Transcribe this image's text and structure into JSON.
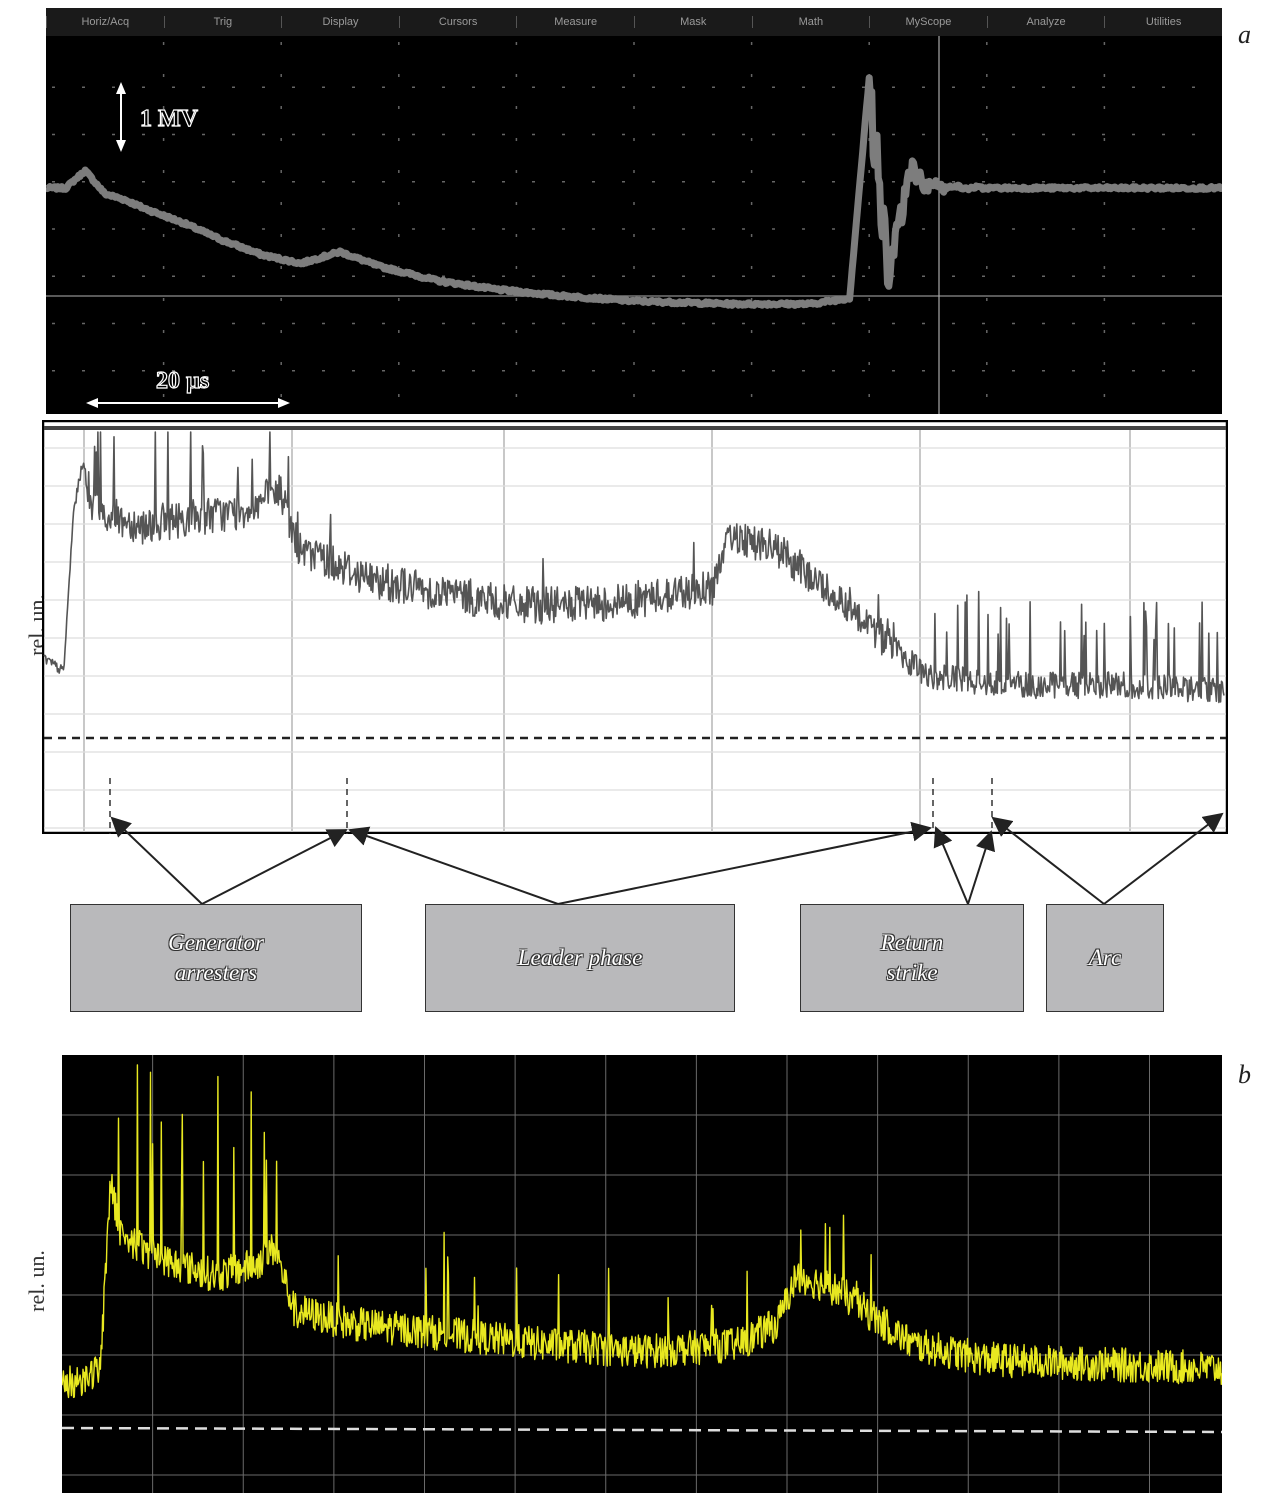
{
  "panel_a": {
    "letter": "a",
    "menu": [
      "Horiz/Acq",
      "Trig",
      "Display",
      "Cursors",
      "Measure",
      "Mask",
      "Math",
      "MyScope",
      "Analyze",
      "Utilities"
    ],
    "voltage_scale": "1 MV",
    "time_scale": "20 µs",
    "ylabel": "rel. un."
  },
  "panel_b": {
    "letter": "b",
    "ylabel": "rel. un."
  },
  "phases": [
    {
      "id": "generator",
      "line1": "Generator",
      "line2": "arresters"
    },
    {
      "id": "leader",
      "line1": "Leader phase",
      "line2": ""
    },
    {
      "id": "return",
      "line1": "Return",
      "line2": "strike"
    },
    {
      "id": "arc",
      "line1": "Arc",
      "line2": ""
    }
  ],
  "colors": {
    "scope_bg": "#000000",
    "voltage_trace": "#7d7d7d",
    "signal_a": "#555555",
    "signal_b": "#e8e820",
    "grid_b": "#6a6a6a",
    "baseline_b": "#dddddd"
  },
  "chart_data": [
    {
      "type": "line",
      "name": "voltage",
      "x": [
        0,
        2,
        4,
        6,
        8,
        10,
        14,
        18,
        22,
        26,
        30,
        34,
        40,
        46,
        52,
        60,
        70,
        78,
        82,
        84,
        86,
        88,
        90,
        94,
        100,
        110,
        120
      ],
      "y": [
        0,
        0,
        0.3,
        -0.1,
        -0.2,
        -0.35,
        -0.6,
        -0.9,
        -1.15,
        -1.3,
        -1.1,
        -1.35,
        -1.6,
        -1.75,
        -1.85,
        -1.95,
        -2.0,
        -2.0,
        -1.9,
        1.9,
        -1.5,
        0.3,
        0.05,
        0.0,
        0.0,
        0.0,
        0.0
      ],
      "xlim": [
        0,
        120
      ]
    },
    {
      "type": "line",
      "name": "optical_a",
      "x": [
        0,
        2,
        3,
        4,
        5,
        7,
        10,
        15,
        20,
        24,
        26,
        29,
        33,
        40,
        48,
        55,
        62,
        68,
        70,
        75,
        78,
        82,
        86,
        90,
        100,
        110,
        120
      ],
      "y": [
        0.15,
        0.1,
        0.7,
        0.9,
        0.7,
        0.68,
        0.65,
        0.68,
        0.7,
        0.78,
        0.55,
        0.52,
        0.45,
        0.4,
        0.35,
        0.35,
        0.38,
        0.42,
        0.62,
        0.55,
        0.45,
        0.35,
        0.2,
        0.08,
        0.05,
        0.05,
        0.03
      ],
      "xlim": [
        0,
        120
      ],
      "ylim": [
        -0.25,
        1
      ]
    },
    {
      "type": "line",
      "name": "optical_b",
      "x": [
        0,
        2,
        4,
        5,
        6,
        8,
        12,
        16,
        20,
        22,
        24,
        30,
        40,
        50,
        60,
        70,
        74,
        76,
        80,
        84,
        88,
        95,
        100,
        110,
        120
      ],
      "y": [
        0.1,
        0.12,
        0.15,
        0.7,
        0.55,
        0.5,
        0.45,
        0.42,
        0.45,
        0.5,
        0.32,
        0.28,
        0.25,
        0.22,
        0.2,
        0.22,
        0.28,
        0.42,
        0.38,
        0.3,
        0.22,
        0.18,
        0.17,
        0.16,
        0.15
      ],
      "xlim": [
        0,
        120
      ],
      "ylim": [
        -0.1,
        1
      ]
    }
  ]
}
